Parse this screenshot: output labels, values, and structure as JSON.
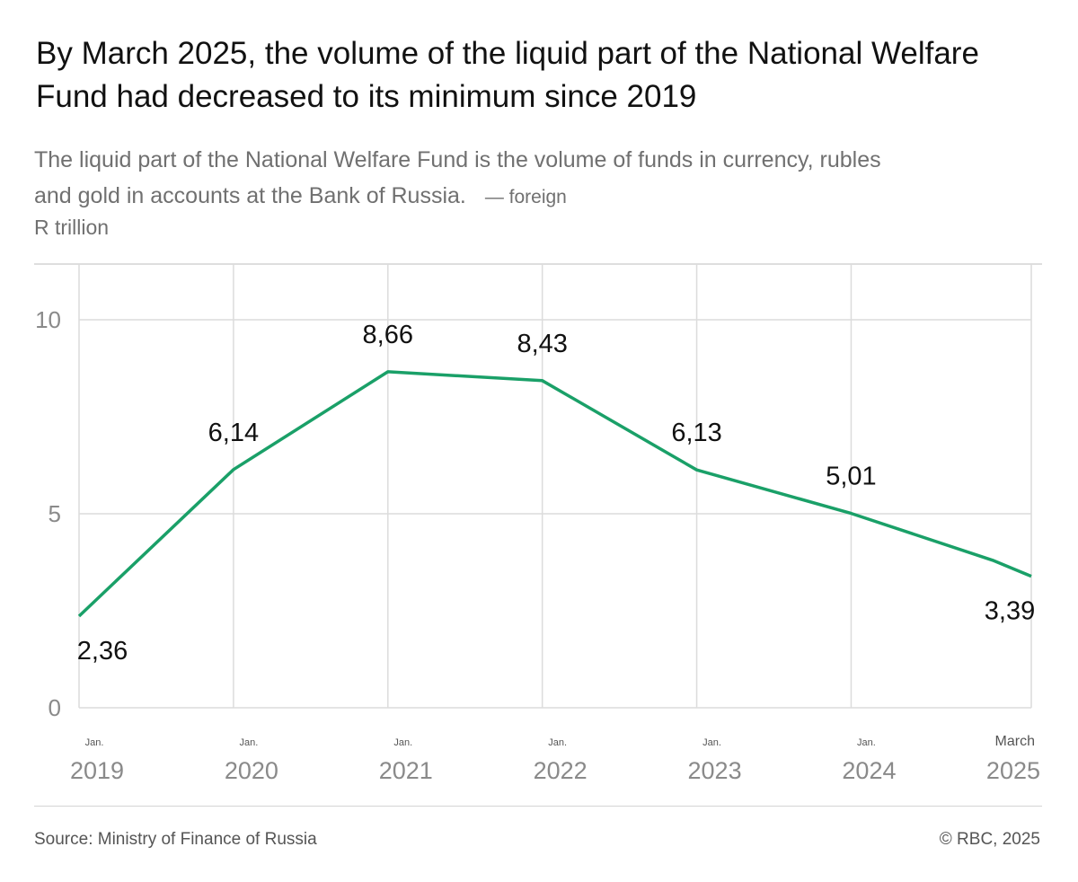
{
  "title": "By March 2025, the volume of the liquid part of the National Welfare Fund had decreased to its minimum since 2019",
  "subtitle": "The liquid part of the National Welfare Fund is the volume of funds in currency, rubles and gold in accounts at the Bank of Russia.",
  "subtitle_note": "— foreign",
  "units": "R trillion",
  "source": "Source: Ministry of Finance of Russia",
  "copyright": "© RBC, 2025",
  "colors": {
    "line": "#1aa068",
    "grid": "#dcdcdc",
    "axis_text": "#8a8a8a",
    "label": "#111111"
  },
  "chart_data": {
    "type": "line",
    "title": "By March 2025, the volume of the liquid part of the National Welfare Fund had decreased to its minimum since 2019",
    "ylabel": "R trillion",
    "ylim": [
      0,
      10
    ],
    "yticks": [
      "0",
      "5",
      "10"
    ],
    "grid": true,
    "x_ticks": [
      {
        "top": "Jan.",
        "year": "2019"
      },
      {
        "top": "Jan.",
        "year": "2020"
      },
      {
        "top": "Jan.",
        "year": "2021"
      },
      {
        "top": "Jan.",
        "year": "2022"
      },
      {
        "top": "Jan.",
        "year": "2023"
      },
      {
        "top": "Jan.",
        "year": "2024"
      },
      {
        "top": "March",
        "year": "2025"
      }
    ],
    "series": [
      {
        "points": [
          {
            "x": "2019-01",
            "y": 2.36,
            "label": "2,36"
          },
          {
            "x": "2020-01",
            "y": 6.14,
            "label": "6,14"
          },
          {
            "x": "2021-01",
            "y": 8.66,
            "label": "8,66"
          },
          {
            "x": "2022-01",
            "y": 8.43,
            "label": "8,43"
          },
          {
            "x": "2023-01",
            "y": 6.13,
            "label": "6,13"
          },
          {
            "x": "2024-01",
            "y": 5.01,
            "label": "5,01"
          },
          {
            "x": "2024-12",
            "y": 3.8
          },
          {
            "x": "2025-03",
            "y": 3.39,
            "label": "3,39"
          }
        ]
      }
    ]
  }
}
